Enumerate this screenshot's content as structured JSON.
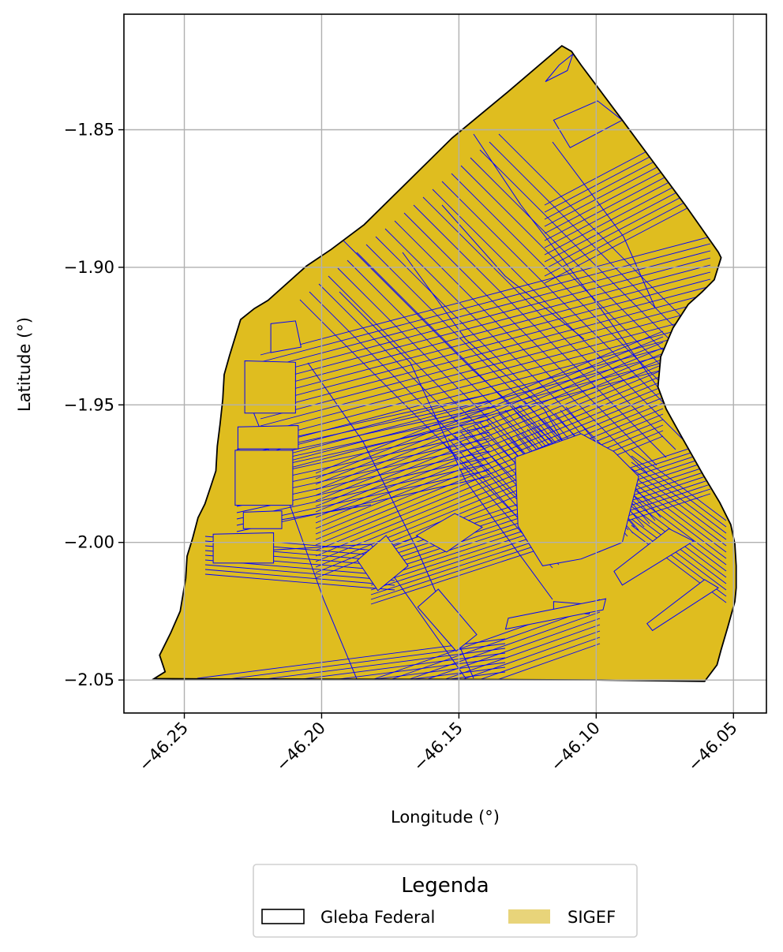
{
  "chart_data": {
    "type": "map",
    "xlabel": "Longitude (°)",
    "ylabel": "Latitude (°)",
    "xlim": [
      -46.272,
      -46.038
    ],
    "ylim": [
      -2.062,
      -1.808
    ],
    "xticks": [
      -46.25,
      -46.2,
      -46.15,
      -46.1,
      -46.05
    ],
    "yticks": [
      -1.85,
      -1.9,
      -1.95,
      -2.0,
      -2.05
    ],
    "xtick_labels": [
      "−46.25",
      "−46.20",
      "−46.15",
      "−46.10",
      "−46.05"
    ],
    "ytick_labels": [
      "−1.85",
      "−1.90",
      "−1.95",
      "−2.00",
      "−2.05"
    ],
    "grid": true,
    "legend": {
      "title": "Legenda",
      "placement": "bottom-center (outside axes)",
      "entries": [
        {
          "label": "Gleba Federal",
          "style": "outline",
          "edge_color": "#000000"
        },
        {
          "label": "SIGEF",
          "style": "fill",
          "fill_color": "#e8d47a"
        }
      ]
    },
    "colors": {
      "sigef_fill": "#dfbd1f",
      "sigef_edge": "#0000ff",
      "gleba_edge": "#000000",
      "grid": "#b0b0b0"
    },
    "gleba_boundary": [
      [
        -46.261,
        -2.0495
      ],
      [
        -46.257,
        -2.047
      ],
      [
        -46.259,
        -2.041
      ],
      [
        -46.255,
        -2.033
      ],
      [
        -46.2515,
        -2.025
      ],
      [
        -46.2495,
        -2.013
      ],
      [
        -46.249,
        -2.005
      ],
      [
        -46.247,
        -1.9985
      ],
      [
        -46.245,
        -1.991
      ],
      [
        -46.2425,
        -1.986
      ],
      [
        -46.2405,
        -1.98
      ],
      [
        -46.2385,
        -1.974
      ],
      [
        -46.238,
        -1.965
      ],
      [
        -46.237,
        -1.957
      ],
      [
        -46.236,
        -1.948
      ],
      [
        -46.2355,
        -1.939
      ],
      [
        -46.2335,
        -1.932
      ],
      [
        -46.2295,
        -1.919
      ],
      [
        -46.2245,
        -1.915
      ],
      [
        -46.2195,
        -1.912
      ],
      [
        -46.2055,
        -1.8995
      ],
      [
        -46.1965,
        -1.8935
      ],
      [
        -46.1845,
        -1.8845
      ],
      [
        -46.1525,
        -1.853
      ],
      [
        -46.1325,
        -1.8365
      ],
      [
        -46.1125,
        -1.8195
      ],
      [
        -46.109,
        -1.8215
      ],
      [
        -46.1055,
        -1.8265
      ],
      [
        -46.0995,
        -1.8345
      ],
      [
        -46.0905,
        -1.8465
      ],
      [
        -46.079,
        -1.862
      ],
      [
        -46.0675,
        -1.8775
      ],
      [
        -46.0555,
        -1.8945
      ],
      [
        -46.0545,
        -1.8965
      ],
      [
        -46.057,
        -1.9045
      ],
      [
        -46.0615,
        -1.909
      ],
      [
        -46.0665,
        -1.9135
      ],
      [
        -46.072,
        -1.922
      ],
      [
        -46.0765,
        -1.9325
      ],
      [
        -46.0775,
        -1.9435
      ],
      [
        -46.0745,
        -1.9515
      ],
      [
        -46.0695,
        -1.9605
      ],
      [
        -46.061,
        -1.9755
      ],
      [
        -46.055,
        -1.9855
      ],
      [
        -46.051,
        -1.9935
      ],
      [
        -46.0495,
        -2.0005
      ],
      [
        -46.049,
        -2.0085
      ],
      [
        -46.049,
        -2.0165
      ],
      [
        -46.0495,
        -2.0215
      ],
      [
        -46.052,
        -2.0305
      ],
      [
        -46.0545,
        -2.039
      ],
      [
        -46.056,
        -2.0445
      ],
      [
        -46.0605,
        -2.0505
      ],
      [
        -46.1,
        -2.05
      ],
      [
        -46.15,
        -2.0498
      ],
      [
        -46.2,
        -2.0497
      ],
      [
        -46.25,
        -2.0496
      ]
    ],
    "parcels": [
      [
        [
          -46.228,
          -1.934
        ],
        [
          -46.2095,
          -1.9345
        ],
        [
          -46.2095,
          -1.953
        ],
        [
          -46.228,
          -1.953
        ]
      ],
      [
        [
          -46.2305,
          -1.958
        ],
        [
          -46.2085,
          -1.9575
        ],
        [
          -46.2085,
          -1.966
        ],
        [
          -46.2305,
          -1.966
        ]
      ],
      [
        [
          -46.2315,
          -1.9665
        ],
        [
          -46.2105,
          -1.9665
        ],
        [
          -46.2105,
          -1.9865
        ],
        [
          -46.2315,
          -1.9865
        ]
      ],
      [
        [
          -46.2285,
          -1.989
        ],
        [
          -46.2145,
          -1.9885
        ],
        [
          -46.2145,
          -1.995
        ],
        [
          -46.2285,
          -1.995
        ]
      ],
      [
        [
          -46.2395,
          -1.997
        ],
        [
          -46.2175,
          -1.9965
        ],
        [
          -46.2175,
          -2.0075
        ],
        [
          -46.2395,
          -2.0075
        ]
      ],
      [
        [
          -46.165,
          -2.0235
        ],
        [
          -46.1575,
          -2.017
        ],
        [
          -46.1435,
          -2.0335
        ],
        [
          -46.151,
          -2.0395
        ]
      ],
      [
        [
          -46.1155,
          -2.0215
        ],
        [
          -46.1025,
          -2.0225
        ],
        [
          -46.1025,
          -2.026
        ],
        [
          -46.1155,
          -2.025
        ]
      ],
      [
        [
          -46.132,
          -2.0275
        ],
        [
          -46.0965,
          -2.0205
        ],
        [
          -46.0975,
          -2.0245
        ],
        [
          -46.133,
          -2.0315
        ]
      ],
      [
        [
          -46.1295,
          -1.969
        ],
        [
          -46.1055,
          -1.9605
        ],
        [
          -46.0935,
          -1.967
        ],
        [
          -46.0845,
          -1.976
        ],
        [
          -46.0905,
          -2.0
        ],
        [
          -46.1055,
          -2.006
        ],
        [
          -46.1195,
          -2.0085
        ],
        [
          -46.1285,
          -1.994
        ]
      ],
      [
        [
          -46.0935,
          -2.0105
        ],
        [
          -46.0735,
          -1.995
        ],
        [
          -46.0645,
          -1.9995
        ],
        [
          -46.0905,
          -2.0155
        ]
      ],
      [
        [
          -46.0815,
          -2.0295
        ],
        [
          -46.0605,
          -2.0135
        ],
        [
          -46.0555,
          -2.0165
        ],
        [
          -46.0795,
          -2.032
        ]
      ],
      [
        [
          -46.187,
          -2.0065
        ],
        [
          -46.1765,
          -1.9975
        ],
        [
          -46.1685,
          -2.0085
        ],
        [
          -46.1795,
          -2.0175
        ]
      ],
      [
        [
          -46.1655,
          -1.9975
        ],
        [
          -46.1515,
          -1.9895
        ],
        [
          -46.1415,
          -1.9945
        ],
        [
          -46.1545,
          -2.0035
        ]
      ],
      [
        [
          -46.1155,
          -1.8465
        ],
        [
          -46.0995,
          -1.8395
        ],
        [
          -46.0905,
          -1.8465
        ],
        [
          -46.1095,
          -1.8565
        ]
      ],
      [
        [
          -46.2185,
          -1.9205
        ],
        [
          -46.2095,
          -1.9195
        ],
        [
          -46.2075,
          -1.929
        ],
        [
          -46.2185,
          -1.931
        ]
      ],
      [
        [
          -46.1085,
          -1.8225
        ],
        [
          -46.1105,
          -1.8285
        ],
        [
          -46.1185,
          -1.8325
        ],
        [
          -46.1135,
          -1.8265
        ]
      ]
    ]
  }
}
